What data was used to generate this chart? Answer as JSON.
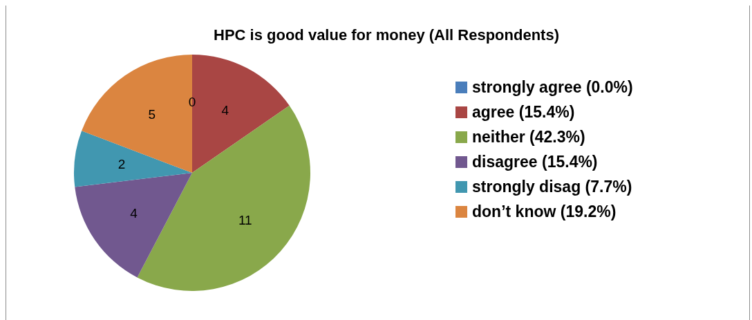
{
  "chart_data": {
    "type": "pie",
    "title": "HPC is good value for money (All Respondents)",
    "categories": [
      "strongly agree (0.0%)",
      "agree (15.4%)",
      "neither (42.3%)",
      "disagree (15.4%)",
      "strongly disag (7.7%)",
      "don’t know (19.2%)"
    ],
    "values": [
      0,
      4,
      11,
      4,
      2,
      5
    ],
    "colors": [
      "#4a7ebb",
      "#a94644",
      "#89a84b",
      "#71588f",
      "#4197b0",
      "#db8540"
    ],
    "value_labels": [
      "0",
      "4",
      "11",
      "4",
      "2",
      "5"
    ],
    "legend": "right"
  }
}
